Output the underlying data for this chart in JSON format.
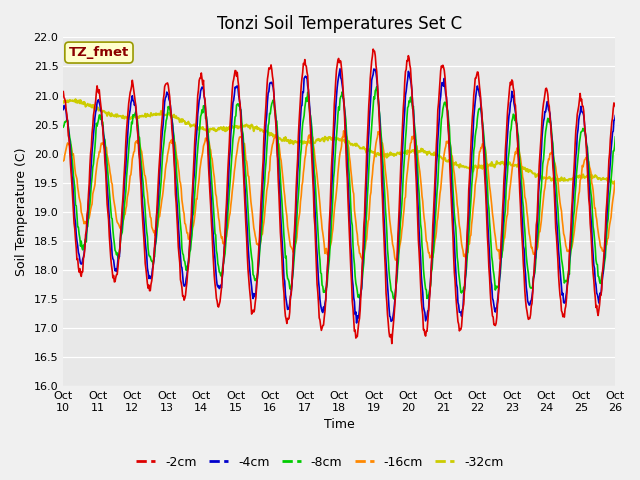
{
  "title": "Tonzi Soil Temperatures Set C",
  "xlabel": "Time",
  "ylabel": "Soil Temperature (C)",
  "ylim": [
    16.0,
    22.0
  ],
  "yticks": [
    16.0,
    16.5,
    17.0,
    17.5,
    18.0,
    18.5,
    19.0,
    19.5,
    20.0,
    20.5,
    21.0,
    21.5,
    22.0
  ],
  "n_days": 16,
  "xtick_labels": [
    "Oct\n10",
    "Oct\n11",
    "Oct\n12",
    "Oct\n13",
    "Oct\n14",
    "Oct\n15",
    "Oct\n16",
    "Oct\n17",
    "Oct\n18",
    "Oct\n19",
    "Oct\n20",
    "Oct\n21",
    "Oct\n22",
    "Oct\n23",
    "Oct\n24",
    "Oct\n25",
    "Oct\n26"
  ],
  "legend_labels": [
    "-2cm",
    "-4cm",
    "-8cm",
    "-16cm",
    "-32cm"
  ],
  "line_colors": [
    "#dd0000",
    "#0000cc",
    "#00cc00",
    "#ff8800",
    "#cccc00"
  ],
  "line_widths": [
    1.2,
    1.2,
    1.2,
    1.2,
    1.5
  ],
  "watermark_text": "TZ_fmet",
  "watermark_color": "#8B0000",
  "watermark_bg": "#ffffcc",
  "fig_bg": "#f0f0f0",
  "plot_bg": "#e8e8e8",
  "grid_color": "#ffffff",
  "title_fontsize": 12,
  "axis_label_fontsize": 9,
  "tick_fontsize": 8,
  "legend_fontsize": 9
}
